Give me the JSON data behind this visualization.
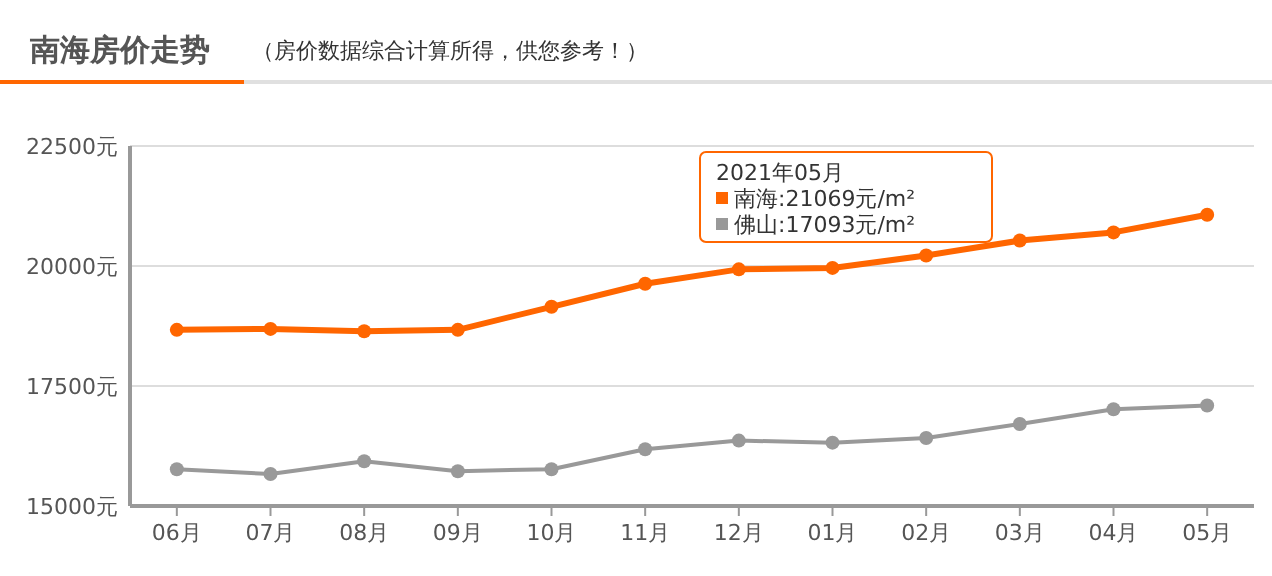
{
  "chart_data": {
    "type": "line",
    "title": "南海房价走势",
    "subtitle": "（房价数据综合计算所得，供您参考！）",
    "categories": [
      "06月",
      "07月",
      "08月",
      "09月",
      "10月",
      "11月",
      "12月",
      "01月",
      "02月",
      "03月",
      "04月",
      "05月"
    ],
    "series": [
      {
        "name": "南海",
        "color": "#ff6600",
        "values": [
          18670,
          18690,
          18640,
          18670,
          19150,
          19630,
          19930,
          19960,
          20220,
          20530,
          20700,
          21069
        ]
      },
      {
        "name": "佛山",
        "color": "#999999",
        "values": [
          15767,
          15667,
          15933,
          15725,
          15767,
          16183,
          16363,
          16320,
          16417,
          16708,
          17017,
          17093
        ]
      }
    ],
    "ylim": [
      15000,
      22500
    ],
    "yticks": [
      {
        "value": 15000,
        "label": "15000元"
      },
      {
        "value": 17500,
        "label": "17500元"
      },
      {
        "value": 20000,
        "label": "20000元"
      },
      {
        "value": 22500,
        "label": "22500元"
      }
    ],
    "grid": "y",
    "marker": "circle",
    "line_style": "solid",
    "legend": "top right",
    "legend_title": "2021年05月",
    "annotations": [
      ":21069元/m²",
      ":17093元/m²"
    ]
  }
}
